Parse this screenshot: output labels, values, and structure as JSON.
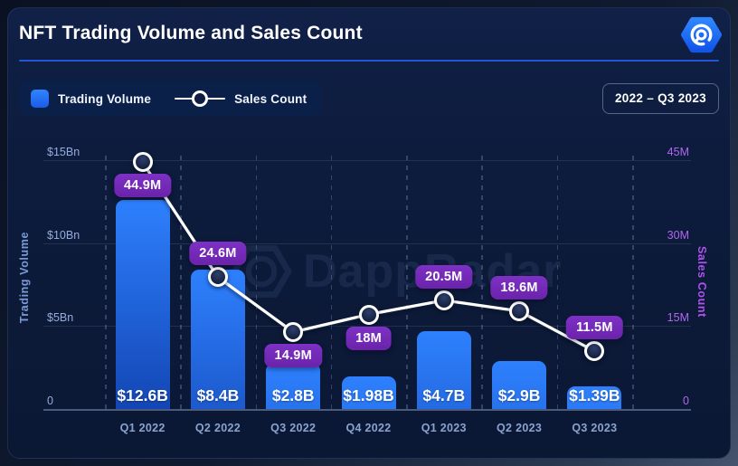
{
  "header": {
    "title": "NFT Trading Volume and Sales Count",
    "range_badge": "2022 – Q3 2023",
    "logo": "dappradar-hexagon-logo"
  },
  "legend": {
    "items": [
      {
        "label": "Trading Volume",
        "swatch": "blue-square"
      },
      {
        "label": "Sales Count",
        "swatch": "white-line-marker"
      }
    ]
  },
  "watermark": {
    "text": "DappRadar"
  },
  "chart_data": {
    "type": "bar+line",
    "title": "NFT Trading Volume and Sales Count",
    "period": "2022 – Q3 2023",
    "categories": [
      "Q1 2022",
      "Q2 2022",
      "Q3 2022",
      "Q4 2022",
      "Q1 2023",
      "Q2 2023",
      "Q3 2023"
    ],
    "series": [
      {
        "name": "Trading Volume",
        "type": "bar",
        "axis": "left",
        "unit": "USD billions",
        "values": [
          12.6,
          8.4,
          2.8,
          1.98,
          4.7,
          2.9,
          1.39
        ],
        "value_labels": [
          "$12.6B",
          "$8.4B",
          "$2.8B",
          "$1.98B",
          "$4.7B",
          "$2.9B",
          "$1.39B"
        ]
      },
      {
        "name": "Sales Count",
        "type": "line",
        "axis": "right",
        "unit": "millions",
        "values": [
          44.9,
          24.6,
          14.9,
          18,
          20.5,
          18.6,
          11.5
        ],
        "value_labels": [
          "44.9M",
          "24.6M",
          "14.9M",
          "18M",
          "20.5M",
          "18.6M",
          "11.5M"
        ],
        "label_placement": [
          "below",
          "above",
          "below",
          "below",
          "above",
          "above",
          "above"
        ]
      }
    ],
    "left_axis": {
      "title": "Trading Volume",
      "tick_labels_top_down": [
        "$15Bn",
        "$10Bn",
        "$5Bn",
        "0"
      ],
      "range": [
        0,
        15
      ]
    },
    "right_axis": {
      "title": "Sales Count",
      "tick_labels_top_down": [
        "45M",
        "30M",
        "15M",
        "0"
      ],
      "range": [
        0,
        45
      ]
    },
    "grid": {
      "horizontal": "solid",
      "vertical": "dashed",
      "legend_position": "top-left"
    },
    "colors": {
      "background": "#0d1b3a",
      "bar_top": "#2e80fe",
      "bar_bottom": "#0e3ba6",
      "line": "#ffffff",
      "badge": "#7327b6",
      "left_axis_text": "#95acdc",
      "right_axis_text": "#b265f2",
      "divider": "#2056d4",
      "logo_blue": "#1f6ff7"
    }
  }
}
